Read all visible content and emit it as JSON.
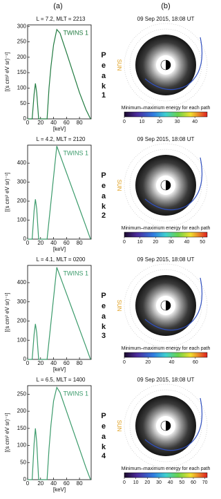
{
  "panel_labels": [
    "(a)",
    "(b)"
  ],
  "chart_data": [
    {
      "type": "line",
      "title": "L =  7.2, MLT = 2213",
      "y_label": "[(s cm² eV sr)⁻¹]",
      "x_label": "[keV]",
      "x": [
        0,
        7,
        10,
        12,
        14,
        17,
        30,
        33,
        36,
        40,
        45,
        50,
        60,
        70,
        80,
        90,
        97
      ],
      "series": [
        {
          "name": "TWINS 1",
          "color": "#1f7a3f",
          "values": [
            0,
            0,
            80,
            115,
            85,
            0,
            0,
            100,
            170,
            240,
            290,
            278,
            215,
            150,
            85,
            30,
            0
          ]
        }
      ],
      "xlim": [
        0,
        98
      ],
      "xticks": [
        0,
        20,
        40,
        60,
        80
      ],
      "ylim": [
        0,
        305
      ],
      "yticks": [
        0,
        50,
        100,
        150,
        200,
        250,
        300
      ],
      "peak_label": "Peak",
      "peak_number": "1",
      "image_title": "09 Sep 2015, 18:08 UT",
      "sun_label": "SUN",
      "colorbar": {
        "label": "Minimum–maximum energy for each path",
        "lim": [
          0,
          47
        ],
        "ticks": [
          0,
          10,
          20,
          30,
          40
        ]
      }
    },
    {
      "type": "line",
      "title": "L =  4.2, MLT = 2120",
      "y_label": "[(s cm² eV sr)⁻¹]",
      "x_label": "[keV]",
      "x": [
        0,
        7,
        10,
        12,
        14,
        17,
        30,
        33,
        36,
        40,
        45,
        50,
        60,
        70,
        80,
        90,
        97
      ],
      "series": [
        {
          "name": "TWINS 1",
          "color": "#3a9a6a",
          "values": [
            0,
            0,
            150,
            210,
            160,
            0,
            0,
            98,
            196,
            327,
            490,
            443,
            349,
            255,
            161,
            67,
            0
          ]
        }
      ],
      "xlim": [
        0,
        98
      ],
      "xticks": [
        0,
        20,
        40,
        60,
        80
      ],
      "ylim": [
        0,
        495
      ],
      "yticks": [
        0,
        100,
        200,
        300,
        400
      ],
      "peak_label": "Peak",
      "peak_number": "2",
      "image_title": "09 Sep 2015, 18:08 UT",
      "sun_label": "SUN",
      "colorbar": {
        "label": "Minimum–maximum energy for each path",
        "lim": [
          0,
          53
        ],
        "ticks": [
          0,
          10,
          20,
          30,
          40,
          50
        ]
      }
    },
    {
      "type": "line",
      "title": "L =  4.1, MLT = 0200",
      "y_label": "[(s cm² eV sr)⁻¹]",
      "x_label": "[keV]",
      "x": [
        0,
        7,
        10,
        12,
        14,
        17,
        30,
        33,
        36,
        40,
        45,
        50,
        60,
        70,
        80,
        90,
        97
      ],
      "series": [
        {
          "name": "TWINS 1",
          "color": "#3a9a6a",
          "values": [
            0,
            0,
            130,
            185,
            140,
            0,
            0,
            96,
            192,
            320,
            480,
            434,
            342,
            250,
            158,
            66,
            0
          ]
        }
      ],
      "xlim": [
        0,
        98
      ],
      "xticks": [
        0,
        20,
        40,
        60,
        80
      ],
      "ylim": [
        0,
        490
      ],
      "yticks": [
        0,
        100,
        200,
        300,
        400
      ],
      "peak_label": "Peak",
      "peak_number": "3",
      "image_title": "09 Sep 2015, 18:08 UT",
      "sun_label": "SUN",
      "colorbar": {
        "label": "Minimum–maximum energy for each path",
        "lim": [
          0,
          70
        ],
        "ticks": [
          0,
          20,
          40,
          60
        ]
      }
    },
    {
      "type": "line",
      "title": "L =  6.5, MLT = 1400",
      "y_label": "[(s cm² eV sr)⁻¹]",
      "x_label": "[keV]",
      "x": [
        0,
        7,
        10,
        12,
        14,
        17,
        30,
        33,
        36,
        40,
        45,
        50,
        60,
        70,
        80,
        90,
        97
      ],
      "series": [
        {
          "name": "TWINS 1",
          "color": "#3a9a6a",
          "values": [
            0,
            0,
            105,
            150,
            110,
            0,
            0,
            90,
            160,
            230,
            270,
            255,
            200,
            145,
            90,
            35,
            0
          ]
        }
      ],
      "xlim": [
        0,
        98
      ],
      "xticks": [
        0,
        20,
        40,
        60,
        80
      ],
      "ylim": [
        0,
        275
      ],
      "yticks": [
        0,
        50,
        100,
        150,
        200,
        250
      ],
      "peak_label": "Peak",
      "peak_number": "4",
      "image_title": "09 Sep 2015, 18:08 UT",
      "sun_label": "SUN",
      "colorbar": {
        "label": "Minimum–maximum energy for each path",
        "lim": [
          0,
          72
        ],
        "ticks": [
          0,
          10,
          20,
          30,
          40,
          50,
          60,
          70
        ]
      }
    }
  ]
}
